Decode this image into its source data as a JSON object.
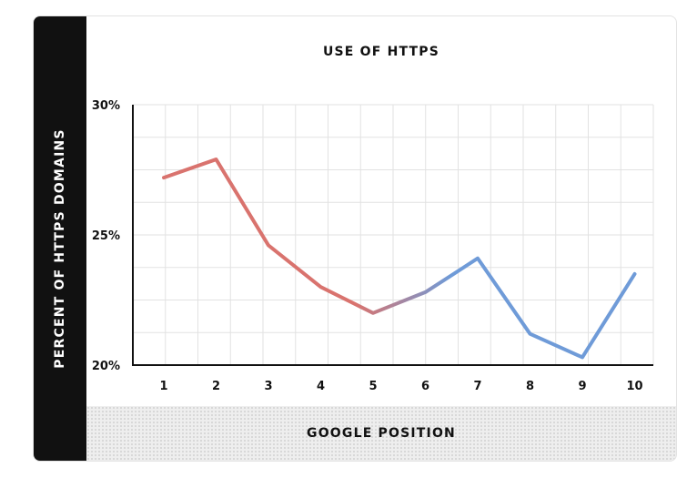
{
  "chart_data": {
    "type": "line",
    "title": "USE OF HTTPS",
    "xlabel": "GOOGLE POSITION",
    "ylabel": "PERCENT OF HTTPS DOMAINS",
    "x": [
      1,
      2,
      3,
      4,
      5,
      6,
      7,
      8,
      9,
      10
    ],
    "series": [
      {
        "values": [
          27.2,
          27.9,
          24.6,
          23.0,
          22.0,
          22.8,
          24.1,
          21.2,
          20.3,
          23.5
        ]
      }
    ],
    "ylim": [
      20,
      30
    ],
    "yticks": [
      "20%",
      "25%",
      "30%"
    ],
    "xticks": [
      "1",
      "2",
      "3",
      "4",
      "5",
      "6",
      "7",
      "8",
      "9",
      "10"
    ],
    "grid": true,
    "colors": {
      "start": "#d9736e",
      "end": "#6f9bd8"
    }
  }
}
